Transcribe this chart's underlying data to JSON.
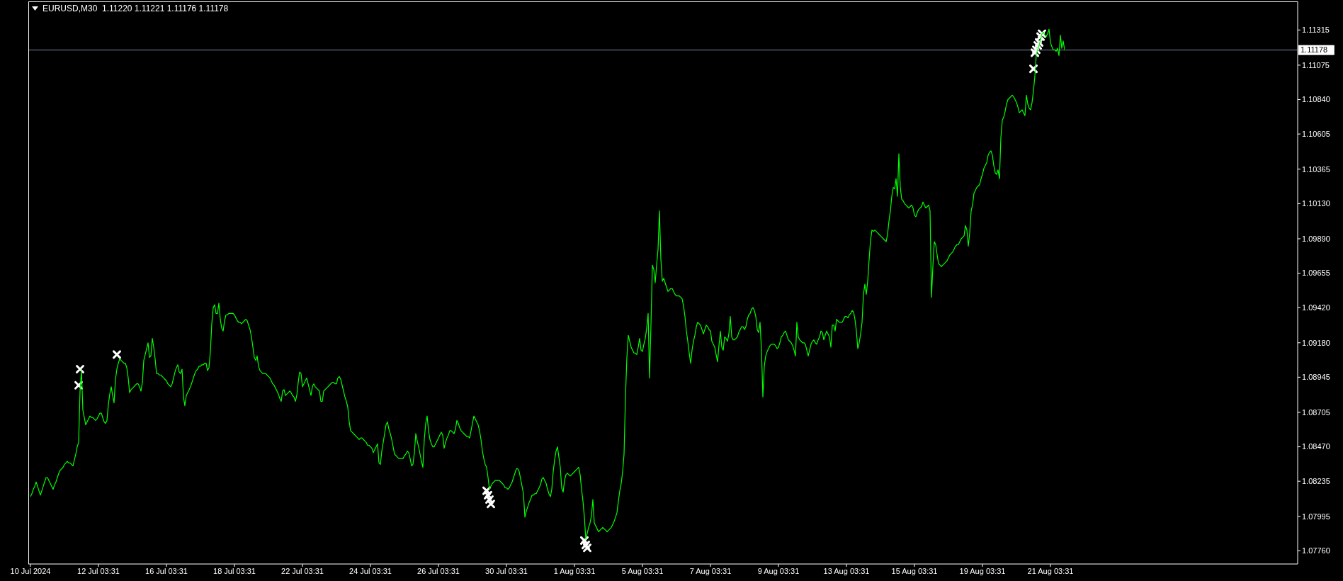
{
  "chart_data": {
    "type": "line",
    "title": "EURUSD,M30  1.11220 1.11221 1.11176 1.11178",
    "categories": [
      "10 Jul 2024",
      null,
      null,
      null,
      null,
      null,
      null,
      null,
      null,
      null,
      null,
      null,
      null,
      null,
      null,
      null,
      null,
      null,
      null,
      null,
      null,
      null,
      null,
      null,
      null,
      null,
      null,
      null,
      null,
      null,
      null,
      null,
      null,
      null,
      null,
      null,
      null,
      null,
      null,
      null,
      null,
      null,
      null,
      null,
      null,
      null,
      null,
      null,
      "12 Jul 03:31",
      null,
      null,
      null,
      null,
      null,
      null,
      null,
      null,
      null,
      null,
      null,
      null,
      null,
      null,
      null,
      null,
      null,
      null,
      null,
      null,
      null,
      null,
      null,
      null,
      null,
      null,
      null,
      null,
      null,
      null,
      null,
      null,
      null,
      null,
      null,
      null,
      null,
      null,
      null,
      null,
      null,
      null,
      null,
      null,
      null,
      null,
      null,
      "16 Jul 03:31",
      null,
      null,
      null,
      null,
      null,
      null,
      null,
      null,
      null,
      null,
      null,
      null,
      null,
      null,
      null,
      null,
      null,
      null,
      null,
      null,
      null,
      null,
      null,
      null,
      null,
      null,
      null,
      null,
      null,
      null,
      null,
      null,
      null,
      null,
      null,
      null,
      null,
      null,
      null,
      null,
      null,
      null,
      null,
      null,
      null,
      null,
      null,
      "18 Jul 03:31",
      null,
      null,
      null,
      null,
      null,
      null,
      null,
      null,
      null,
      null,
      null,
      null,
      null,
      null,
      null,
      null,
      null,
      null,
      null,
      null,
      null,
      null,
      null,
      null,
      null,
      null,
      null,
      null,
      null,
      null,
      null,
      null,
      null,
      null,
      null,
      null,
      null,
      null,
      null,
      null,
      null,
      null,
      null,
      null,
      null,
      null,
      null,
      "22 Jul 03:31",
      null,
      null,
      null,
      null,
      null,
      null,
      null,
      null,
      null,
      null,
      null,
      null,
      null,
      null,
      null,
      null,
      null,
      null,
      null,
      null,
      null,
      null,
      null,
      null,
      null,
      null,
      null,
      null,
      null,
      null,
      null,
      null,
      null,
      null,
      null,
      null,
      null,
      null,
      null,
      null,
      null,
      null,
      null,
      null,
      null,
      null,
      null,
      "24 Jul 03:31",
      null,
      null,
      null,
      null,
      null,
      null,
      null,
      null,
      null,
      null,
      null,
      null,
      null,
      null,
      null,
      null,
      null,
      null,
      null,
      null,
      null,
      null,
      null,
      null,
      null,
      null,
      null,
      null,
      null,
      null,
      null,
      null,
      null,
      null,
      null,
      null,
      null,
      null,
      null,
      null,
      null,
      null,
      null,
      null,
      null,
      null,
      null,
      "26 Jul 03:31",
      null,
      null,
      null,
      null,
      null,
      null,
      null,
      null,
      null,
      null,
      null,
      null,
      null,
      null,
      null,
      null,
      null,
      null,
      null,
      null,
      null,
      null,
      null,
      null,
      null,
      null,
      null,
      null,
      null,
      null,
      null,
      null,
      null,
      null,
      null,
      null,
      null,
      null,
      null,
      null,
      null,
      null,
      null,
      null,
      null,
      null,
      null,
      "30 Jul 03:31",
      null,
      null,
      null,
      null,
      null,
      null,
      null,
      null,
      null,
      null,
      null,
      null,
      null,
      null,
      null,
      null,
      null,
      null,
      null,
      null,
      null,
      null,
      null,
      null,
      null,
      null,
      null,
      null,
      null,
      null,
      null,
      null,
      null,
      null,
      null,
      null,
      null,
      null,
      null,
      null,
      null,
      null,
      null,
      null,
      null,
      null,
      null,
      "1 Aug 03:31",
      null,
      null,
      null,
      null,
      null,
      null,
      null,
      null,
      null,
      null,
      null,
      null,
      null,
      null,
      null,
      null,
      null,
      null,
      null,
      null,
      null,
      null,
      null,
      null,
      null,
      null,
      null,
      null,
      null,
      null,
      null,
      null,
      null,
      null,
      null,
      null,
      null,
      null,
      null,
      null,
      null,
      null,
      null,
      null,
      null,
      null,
      null,
      "5 Aug 03:31",
      null,
      null,
      null,
      null,
      null,
      null,
      null,
      null,
      null,
      null,
      null,
      null,
      null,
      null,
      null,
      null,
      null,
      null,
      null,
      null,
      null,
      null,
      null,
      null,
      null,
      null,
      null,
      null,
      null,
      null,
      null,
      null,
      null,
      null,
      null,
      null,
      null,
      null,
      null,
      null,
      null,
      null,
      null,
      null,
      null,
      null,
      null,
      "7 Aug 03:31",
      null,
      null,
      null,
      null,
      null,
      null,
      null,
      null,
      null,
      null,
      null,
      null,
      null,
      null,
      null,
      null,
      null,
      null,
      null,
      null,
      null,
      null,
      null,
      null,
      null,
      null,
      null,
      null,
      null,
      null,
      null,
      null,
      null,
      null,
      null,
      null,
      null,
      null,
      null,
      null,
      null,
      null,
      null,
      null,
      null,
      null,
      null,
      "9 Aug 03:31",
      null,
      null,
      null,
      null,
      null,
      null,
      null,
      null,
      null,
      null,
      null,
      null,
      null,
      null,
      null,
      null,
      null,
      null,
      null,
      null,
      null,
      null,
      null,
      null,
      null,
      null,
      null,
      null,
      null,
      null,
      null,
      null,
      null,
      null,
      null,
      null,
      null,
      null,
      null,
      null,
      null,
      null,
      null,
      null,
      null,
      null,
      null,
      "13 Aug 03:31",
      null,
      null,
      null,
      null,
      null,
      null,
      null,
      null,
      null,
      null,
      null,
      null,
      null,
      null,
      null,
      null,
      null,
      null,
      null,
      null,
      null,
      null,
      null,
      null,
      null,
      null,
      null,
      null,
      null,
      null,
      null,
      null,
      null,
      null,
      null,
      null,
      null,
      null,
      null,
      null,
      null,
      null,
      null,
      null,
      null,
      null,
      null,
      "15 Aug 03:31",
      null,
      null,
      null,
      null,
      null,
      null,
      null,
      null,
      null,
      null,
      null,
      null,
      null,
      null,
      null,
      null,
      null,
      null,
      null,
      null,
      null,
      null,
      null,
      null,
      null,
      null,
      null,
      null,
      null,
      null,
      null,
      null,
      null,
      null,
      null,
      null,
      null,
      null,
      null,
      null,
      null,
      null,
      null,
      null,
      null,
      null,
      null,
      "19 Aug 03:31",
      null,
      null,
      null,
      null,
      null,
      null,
      null,
      null,
      null,
      null,
      null,
      null,
      null,
      null,
      null,
      null,
      null,
      null,
      null,
      null,
      null,
      null,
      null,
      null,
      null,
      null,
      null,
      null,
      null,
      null,
      null,
      null,
      null,
      null,
      null,
      null,
      null,
      null,
      null,
      null,
      null,
      null,
      null,
      null,
      null,
      null,
      null,
      "21 Aug 03:31",
      null,
      null,
      null,
      null,
      null,
      null,
      null,
      null,
      null,
      null
    ],
    "ylim": [
      1.0767,
      1.1151
    ],
    "yticks": [
      {
        "value": 1.0776,
        "label": "1.07760"
      },
      1.07995,
      1.08235,
      {
        "value": 1.0847,
        "label": "1.08470"
      },
      1.08705,
      1.08945,
      {
        "value": 1.0918,
        "label": "1.09180"
      },
      {
        "value": 1.0942,
        "label": "1.09420"
      },
      1.09655,
      {
        "value": 1.0989,
        "label": "1.09890"
      },
      {
        "value": 1.1013,
        "label": "1.10130"
      },
      1.10365,
      1.10605,
      {
        "value": 1.1084,
        "label": "1.10840"
      },
      1.11075,
      1.11315
    ],
    "ref_lines": [
      {
        "axis": "y",
        "value": 1.11178,
        "label": "1.11178",
        "color": "#778899"
      }
    ],
    "series": [
      {
        "color": "#00ff00",
        "values": [
          1.0813,
          1.0815,
          1.0818,
          1.082,
          1.0823,
          1.082,
          1.0817,
          1.0814,
          1.0817,
          1.082,
          1.0823,
          1.0826,
          1.0826,
          1.0824,
          1.0822,
          1.082,
          1.0818,
          1.0821,
          1.0823,
          1.0826,
          1.0829,
          1.0831,
          1.0832,
          1.0833,
          1.0835,
          1.0836,
          1.0837,
          1.0836,
          1.0836,
          1.0835,
          1.0834,
          1.0838,
          1.0842,
          1.0847,
          1.085,
          1.0885,
          1.0899,
          1.0872,
          1.0867,
          1.0862,
          1.0864,
          1.0866,
          1.0868,
          1.0867,
          1.0867,
          1.0866,
          1.0865,
          1.0866,
          1.0868,
          1.087,
          1.087,
          1.0867,
          1.0864,
          1.0863,
          1.0865,
          1.0876,
          1.0883,
          1.0888,
          1.0882,
          1.0877,
          1.0893,
          1.09,
          1.0904,
          1.0907,
          1.0906,
          1.0905,
          1.0904,
          1.0904,
          1.0901,
          1.0894,
          1.0884,
          1.0886,
          1.0887,
          1.0888,
          1.0889,
          1.089,
          1.089,
          1.0888,
          1.0885,
          1.0891,
          1.0906,
          1.091,
          1.0914,
          1.0918,
          1.0908,
          1.0909,
          1.0921,
          1.0915,
          1.0907,
          1.0897,
          1.0897,
          1.0896,
          1.0896,
          1.0895,
          1.0894,
          1.0893,
          1.0892,
          1.089,
          1.0889,
          1.0888,
          1.089,
          1.0894,
          1.0898,
          1.0901,
          1.0903,
          1.0898,
          1.0897,
          1.09,
          1.0881,
          1.0875,
          1.0882,
          1.0884,
          1.0886,
          1.0888,
          1.0891,
          1.0894,
          1.0897,
          1.0899,
          1.09,
          1.0902,
          1.0902,
          1.0903,
          1.0903,
          1.0904,
          1.0904,
          1.0899,
          1.0901,
          1.0912,
          1.0931,
          1.0942,
          1.0944,
          1.0938,
          1.0938,
          1.0945,
          1.0934,
          1.0928,
          1.0926,
          1.0933,
          1.0937,
          1.0937,
          1.0938,
          1.0938,
          1.0938,
          1.0938,
          1.0937,
          1.0935,
          1.0933,
          1.0932,
          1.0932,
          1.0931,
          1.0932,
          1.0933,
          1.0934,
          1.0933,
          1.093,
          1.0927,
          1.0922,
          1.0915,
          1.0908,
          1.0906,
          1.0909,
          1.0902,
          1.0899,
          1.0898,
          1.0897,
          1.0897,
          1.0897,
          1.0896,
          1.0895,
          1.0894,
          1.0892,
          1.089,
          1.0889,
          1.0887,
          1.0885,
          1.0883,
          1.088,
          1.0878,
          1.0885,
          1.0886,
          1.0882,
          1.0883,
          1.0884,
          1.0885,
          1.0884,
          1.0882,
          1.0881,
          1.0878,
          1.0882,
          1.0891,
          1.0898,
          1.0897,
          1.0888,
          1.089,
          1.0892,
          1.0894,
          1.089,
          1.0886,
          1.0882,
          1.0888,
          1.089,
          1.0888,
          1.0887,
          1.0886,
          1.0885,
          1.0878,
          1.0878,
          1.0885,
          1.0886,
          1.0887,
          1.0888,
          1.0889,
          1.089,
          1.0891,
          1.0891,
          1.089,
          1.089,
          1.0894,
          1.0895,
          1.0893,
          1.0889,
          1.0885,
          1.0881,
          1.0878,
          1.0874,
          1.0864,
          1.0858,
          1.0857,
          1.0856,
          1.0855,
          1.0854,
          1.0853,
          1.0852,
          1.0853,
          1.0853,
          1.0852,
          1.0851,
          1.085,
          1.0848,
          1.0848,
          1.0847,
          1.0846,
          1.0843,
          1.0845,
          1.0847,
          1.0849,
          1.0836,
          1.0835,
          1.0844,
          1.085,
          1.0856,
          1.0862,
          1.0864,
          1.0859,
          1.0856,
          1.0852,
          1.0847,
          1.0842,
          1.0841,
          1.084,
          1.0839,
          1.0839,
          1.0839,
          1.0839,
          1.0841,
          1.0842,
          1.0844,
          1.0843,
          1.0839,
          1.0834,
          1.0835,
          1.0843,
          1.0856,
          1.0851,
          1.0847,
          1.0842,
          1.0837,
          1.0833,
          1.0852,
          1.0863,
          1.0868,
          1.0858,
          1.0852,
          1.0849,
          1.0847,
          1.0847,
          1.0849,
          1.0851,
          1.0853,
          1.0855,
          1.0857,
          1.0855,
          1.0846,
          1.085,
          1.0853,
          1.0855,
          1.0858,
          1.0858,
          1.0857,
          1.0856,
          1.0859,
          1.0865,
          1.0863,
          1.086,
          1.0858,
          1.0857,
          1.0856,
          1.0855,
          1.0854,
          1.0854,
          1.0853,
          1.0858,
          1.0863,
          1.0868,
          1.0866,
          1.0864,
          1.0862,
          1.0858,
          1.0852,
          1.0844,
          1.0839,
          1.0835,
          1.0833,
          1.0826,
          1.0818,
          1.082,
          1.0822,
          1.0823,
          1.0824,
          1.0824,
          1.0824,
          1.0824,
          1.0823,
          1.0822,
          1.0821,
          1.0819,
          1.0819,
          1.0818,
          1.0819,
          1.0821,
          1.0823,
          1.0826,
          1.0829,
          1.0832,
          1.0832,
          1.083,
          1.0825,
          1.082,
          1.0815,
          1.0799,
          1.0803,
          1.0806,
          1.0809,
          1.0811,
          1.0814,
          1.0814,
          1.0815,
          1.0815,
          1.0817,
          1.0819,
          1.0821,
          1.0825,
          1.0826,
          1.0824,
          1.0822,
          1.0818,
          1.0815,
          1.0813,
          1.0818,
          1.083,
          1.0838,
          1.0844,
          1.0847,
          1.084,
          1.0833,
          1.0819,
          1.0816,
          1.0824,
          1.0828,
          1.0829,
          1.0828,
          1.0827,
          1.0828,
          1.0829,
          1.083,
          1.0831,
          1.0832,
          1.0833,
          1.0828,
          1.0818,
          1.081,
          1.0799,
          1.0784,
          1.0788,
          1.0792,
          1.0795,
          1.08,
          1.0811,
          1.0795,
          1.0793,
          1.0791,
          1.0789,
          1.079,
          1.0791,
          1.0792,
          1.0791,
          1.079,
          1.0789,
          1.079,
          1.0791,
          1.0792,
          1.0794,
          1.0796,
          1.0799,
          1.0802,
          1.081,
          1.0817,
          1.0822,
          1.083,
          1.0842,
          1.0881,
          1.0908,
          1.0923,
          1.0919,
          1.0915,
          1.0913,
          1.0911,
          1.0911,
          1.091,
          1.0915,
          1.0921,
          1.0913,
          1.0912,
          1.0917,
          1.0921,
          1.0928,
          1.0938,
          1.0894,
          1.093,
          1.0971,
          1.0968,
          1.0959,
          1.0971,
          1.0982,
          1.1008,
          1.0975,
          1.096,
          1.0962,
          1.0959,
          1.0956,
          1.0953,
          1.0954,
          1.0955,
          1.0955,
          1.0953,
          1.0951,
          1.095,
          1.095,
          1.095,
          1.0949,
          1.0948,
          1.0943,
          1.0936,
          1.0926,
          1.0919,
          1.0911,
          1.0904,
          1.0913,
          1.0919,
          1.0923,
          1.0929,
          1.0932,
          1.0931,
          1.093,
          1.0927,
          1.0924,
          1.0927,
          1.093,
          1.0929,
          1.0927,
          1.0926,
          1.0919,
          1.0917,
          1.0915,
          1.091,
          1.0905,
          1.0916,
          1.0926,
          1.0915,
          1.0913,
          1.0922,
          1.0921,
          1.0919,
          1.0924,
          1.0936,
          1.0922,
          1.092,
          1.092,
          1.0921,
          1.0922,
          1.0925,
          1.0927,
          1.0929,
          1.0929,
          1.0927,
          1.0929,
          1.0934,
          1.0937,
          1.0938,
          1.0941,
          1.0942,
          1.094,
          1.0936,
          1.0927,
          1.0925,
          1.0932,
          1.0913,
          1.0881,
          1.0902,
          1.0909,
          1.0912,
          1.0914,
          1.0916,
          1.0917,
          1.0917,
          1.0917,
          1.0916,
          1.0914,
          1.0915,
          1.0918,
          1.0922,
          1.0923,
          1.0925,
          1.0926,
          1.0923,
          1.092,
          1.0919,
          1.0918,
          1.0916,
          1.0913,
          1.0909,
          1.0932,
          1.0922,
          1.092,
          1.0919,
          1.0918,
          1.0918,
          1.0917,
          1.0913,
          1.0909,
          1.0913,
          1.0917,
          1.0919,
          1.092,
          1.0918,
          1.0917,
          1.092,
          1.0922,
          1.0926,
          1.0925,
          1.092,
          1.0923,
          1.0926,
          1.0924,
          1.0922,
          1.0915,
          1.093,
          1.093,
          1.0926,
          1.0934,
          1.0933,
          1.0932,
          1.0932,
          1.0932,
          1.0934,
          1.0936,
          1.0936,
          1.0935,
          1.0937,
          1.0938,
          1.094,
          1.0939,
          1.0934,
          1.0926,
          1.0914,
          1.0918,
          1.0924,
          1.0932,
          1.0951,
          1.0958,
          1.0951,
          1.096,
          1.0975,
          1.0988,
          1.0995,
          1.0994,
          1.0995,
          1.0994,
          1.0993,
          1.0992,
          1.0991,
          1.099,
          1.0989,
          1.0988,
          1.0987,
          1.0992,
          1.1001,
          1.1008,
          1.1018,
          1.1024,
          1.1023,
          1.103,
          1.1018,
          1.1047,
          1.1024,
          1.1016,
          1.1015,
          1.1013,
          1.1012,
          1.1011,
          1.101,
          1.1011,
          1.1012,
          1.101,
          1.1005,
          1.1004,
          1.1007,
          1.1009,
          1.101,
          1.1011,
          1.1014,
          1.1012,
          1.101,
          1.1011,
          1.1012,
          1.1008,
          1.0949,
          1.097,
          1.0987,
          1.0985,
          1.0978,
          1.0972,
          1.0971,
          1.097,
          1.0971,
          1.0972,
          1.0973,
          1.0974,
          1.0976,
          1.0978,
          1.0979,
          1.098,
          1.0982,
          1.0984,
          1.0985,
          1.0985,
          1.0987,
          1.0989,
          1.099,
          1.0991,
          1.0998,
          1.0995,
          1.0984,
          1.0993,
          1.1008,
          1.1012,
          1.102,
          1.1022,
          1.1024,
          1.1025,
          1.1026,
          1.103,
          1.1033,
          1.1037,
          1.1039,
          1.1041,
          1.1046,
          1.1048,
          1.1049,
          1.1046,
          1.1039,
          1.1034,
          1.1033,
          1.1036,
          1.103,
          1.1058,
          1.107,
          1.1072,
          1.1076,
          1.1081,
          1.1084,
          1.1085,
          1.1086,
          1.1087,
          1.1086,
          1.1084,
          1.1082,
          1.1079,
          1.1075,
          1.1076,
          1.1077,
          1.1075,
          1.1073,
          1.1087,
          1.1081,
          1.1078,
          1.1077,
          1.1082,
          1.109,
          1.11,
          1.1115,
          1.1118,
          1.1121,
          1.1125,
          1.1129,
          1.113,
          1.1128,
          1.1127,
          1.1129,
          1.1132,
          1.1123,
          1.112,
          1.1118,
          1.1118,
          1.1117,
          1.1119,
          1.1114,
          1.1128,
          1.1119,
          1.1124,
          1.11178
        ]
      },
      {
        "type": "scatter",
        "color": "#ffffff",
        "marker": "cross",
        "values": [
          null,
          null,
          null,
          null,
          null,
          null,
          null,
          null,
          null,
          null,
          null,
          null,
          null,
          null,
          null,
          null,
          null,
          null,
          null,
          null,
          null,
          null,
          null,
          null,
          null,
          null,
          null,
          null,
          null,
          null,
          null,
          null,
          null,
          null,
          1.0889,
          1.09,
          null,
          null,
          null,
          null,
          null,
          null,
          null,
          null,
          null,
          null,
          null,
          null,
          null,
          null,
          null,
          null,
          null,
          null,
          null,
          null,
          null,
          null,
          null,
          null,
          null,
          1.091,
          null,
          null,
          null,
          null,
          null,
          null,
          null,
          null,
          null,
          null,
          null,
          null,
          null,
          null,
          null,
          null,
          null,
          null,
          null,
          null,
          null,
          null,
          null,
          null,
          null,
          null,
          null,
          null,
          null,
          null,
          null,
          null,
          null,
          null,
          null,
          null,
          null,
          null,
          null,
          null,
          null,
          null,
          null,
          null,
          null,
          null,
          null,
          null,
          null,
          null,
          null,
          null,
          null,
          null,
          null,
          null,
          null,
          null,
          null,
          null,
          null,
          null,
          null,
          null,
          null,
          null,
          null,
          null,
          null,
          null,
          null,
          null,
          null,
          null,
          null,
          null,
          null,
          null,
          null,
          null,
          null,
          null,
          null,
          null,
          null,
          null,
          null,
          null,
          null,
          null,
          null,
          null,
          null,
          null,
          null,
          null,
          null,
          null,
          null,
          null,
          null,
          null,
          null,
          null,
          null,
          null,
          null,
          null,
          null,
          null,
          null,
          null,
          null,
          null,
          null,
          null,
          null,
          null,
          null,
          null,
          null,
          null,
          null,
          null,
          null,
          null,
          null,
          null,
          null,
          null,
          null,
          null,
          null,
          null,
          null,
          null,
          null,
          null,
          null,
          null,
          null,
          null,
          null,
          null,
          null,
          null,
          null,
          null,
          null,
          null,
          null,
          null,
          null,
          null,
          null,
          null,
          null,
          null,
          null,
          null,
          null,
          null,
          null,
          null,
          null,
          null,
          null,
          null,
          null,
          null,
          null,
          null,
          null,
          null,
          null,
          null,
          null,
          null,
          null,
          null,
          null,
          null,
          null,
          null,
          null,
          null,
          null,
          null,
          null,
          null,
          null,
          null,
          null,
          null,
          null,
          null,
          null,
          null,
          null,
          null,
          null,
          null,
          null,
          null,
          null,
          null,
          null,
          null,
          null,
          null,
          null,
          null,
          null,
          null,
          null,
          null,
          null,
          null,
          null,
          null,
          null,
          null,
          null,
          null,
          null,
          null,
          null,
          null,
          null,
          null,
          null,
          null,
          null,
          null,
          null,
          null,
          null,
          null,
          null,
          null,
          null,
          null,
          null,
          null,
          null,
          null,
          null,
          null,
          null,
          null,
          null,
          null,
          null,
          null,
          null,
          null,
          null,
          null,
          null,
          null,
          1.0817,
          1.0814,
          1.0811,
          1.0808,
          null,
          null,
          null,
          null,
          null,
          null,
          null,
          null,
          null,
          null,
          null,
          null,
          null,
          null,
          null,
          null,
          null,
          null,
          null,
          null,
          null,
          null,
          null,
          null,
          null,
          null,
          null,
          null,
          null,
          null,
          null,
          null,
          null,
          null,
          null,
          null,
          null,
          null,
          null,
          null,
          null,
          null,
          null,
          null,
          null,
          null,
          null,
          null,
          null,
          null,
          null,
          null,
          null,
          null,
          null,
          null,
          null,
          null,
          null,
          null,
          null,
          null,
          null,
          null,
          null,
          1.0783,
          1.078,
          1.0778,
          null,
          null,
          null,
          null,
          null,
          null,
          null,
          null,
          null,
          null,
          null,
          null,
          null,
          null,
          null,
          null,
          null,
          null,
          null,
          null,
          null,
          null,
          null,
          null,
          null,
          null,
          null,
          null,
          null,
          null,
          null,
          null,
          null,
          null,
          null,
          null,
          null,
          null,
          null,
          null,
          null,
          null,
          null,
          null,
          null,
          null,
          null,
          null,
          null,
          null,
          null,
          null,
          null,
          null,
          null,
          null,
          null,
          null,
          null,
          null,
          null,
          null,
          null,
          null,
          null,
          null,
          null,
          null,
          null,
          null,
          null,
          null,
          null,
          null,
          null,
          null,
          null,
          null,
          null,
          null,
          null,
          null,
          null,
          null,
          null,
          null,
          null,
          null,
          null,
          null,
          null,
          null,
          null,
          null,
          null,
          null,
          null,
          null,
          null,
          null,
          null,
          null,
          null,
          null,
          null,
          null,
          null,
          null,
          null,
          null,
          null,
          null,
          null,
          null,
          null,
          null,
          null,
          null,
          null,
          null,
          null,
          null,
          null,
          null,
          null,
          null,
          null,
          null,
          null,
          null,
          null,
          null,
          null,
          null,
          null,
          null,
          null,
          null,
          null,
          null,
          null,
          null,
          null,
          null,
          null,
          null,
          null,
          null,
          null,
          null,
          null,
          null,
          null,
          null,
          null,
          null,
          null,
          null,
          null,
          null,
          null,
          null,
          null,
          null,
          null,
          null,
          null,
          null,
          null,
          null,
          null,
          null,
          null,
          null,
          null,
          null,
          null,
          null,
          null,
          null,
          null,
          null,
          null,
          null,
          null,
          null,
          null,
          null,
          null,
          null,
          null,
          null,
          null,
          null,
          null,
          null,
          null,
          null,
          null,
          null,
          null,
          null,
          null,
          null,
          null,
          null,
          null,
          null,
          null,
          null,
          null,
          null,
          null,
          null,
          null,
          null,
          null,
          null,
          null,
          null,
          null,
          null,
          null,
          null,
          null,
          null,
          null,
          null,
          null,
          null,
          null,
          null,
          null,
          null,
          null,
          null,
          null,
          null,
          null,
          null,
          null,
          null,
          null,
          null,
          null,
          null,
          null,
          null,
          null,
          null,
          null,
          null,
          null,
          null,
          null,
          null,
          null,
          null,
          null,
          null,
          null,
          null,
          null,
          null,
          null,
          null,
          null,
          null,
          null,
          null,
          null,
          null,
          null,
          null,
          null,
          null,
          null,
          null,
          null,
          null,
          null,
          null,
          null,
          null,
          null,
          null,
          null,
          null,
          null,
          null,
          null,
          null,
          null,
          null,
          null,
          null,
          null,
          null,
          null,
          null,
          null,
          null,
          null,
          null,
          null,
          null,
          null,
          null,
          null,
          null,
          null,
          null,
          null,
          null,
          1.1105,
          1.1116,
          1.1118,
          1.1121,
          1.1123,
          1.1127,
          1.1129,
          null,
          null,
          null,
          null,
          null,
          null,
          null,
          null,
          null,
          null,
          null,
          null,
          null,
          null,
          null,
          null
        ]
      }
    ]
  }
}
